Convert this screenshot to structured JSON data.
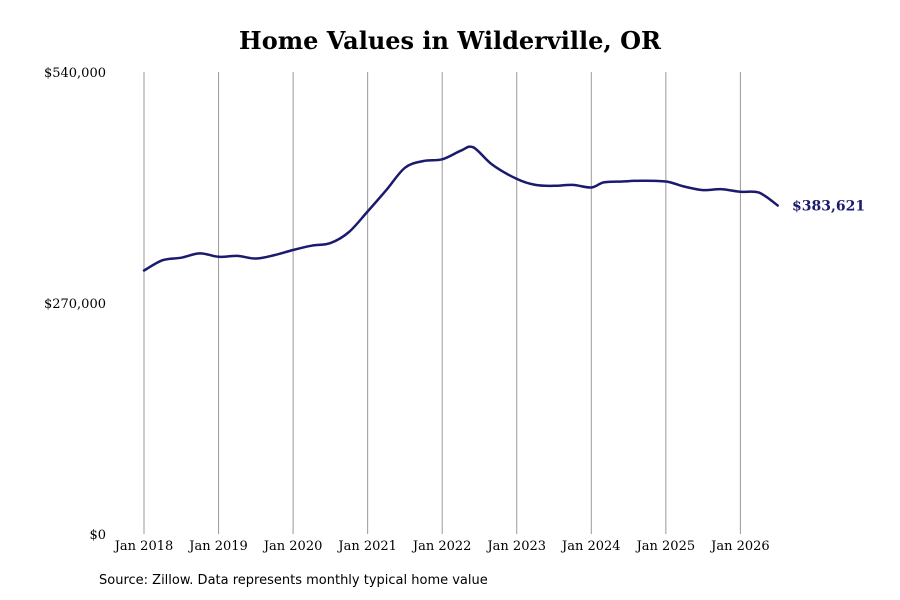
{
  "chart_data": {
    "type": "line",
    "title": "Home Values in Wilderville, OR",
    "xlabel": "",
    "ylabel": "",
    "ylim": [
      0,
      540000
    ],
    "y_ticks": [
      {
        "value": 0,
        "label": "$0"
      },
      {
        "value": 270000,
        "label": "$270,000"
      },
      {
        "value": 540000,
        "label": "$540,000"
      }
    ],
    "x_ticks": [
      {
        "value": "2018-01",
        "label": "Jan 2018"
      },
      {
        "value": "2019-01",
        "label": "Jan 2019"
      },
      {
        "value": "2020-01",
        "label": "Jan 2020"
      },
      {
        "value": "2021-01",
        "label": "Jan 2021"
      },
      {
        "value": "2022-01",
        "label": "Jan 2022"
      },
      {
        "value": "2023-01",
        "label": "Jan 2023"
      },
      {
        "value": "2024-01",
        "label": "Jan 2024"
      },
      {
        "value": "2025-01",
        "label": "Jan 2025"
      },
      {
        "value": "2026-01",
        "label": "Jan 2026"
      }
    ],
    "grid": "vertical",
    "line_color": "#1a1a6e",
    "end_label": "$383,621",
    "series": [
      {
        "name": "",
        "x": [
          "2018-01",
          "2018-04",
          "2018-07",
          "2018-10",
          "2019-01",
          "2019-04",
          "2019-07",
          "2019-10",
          "2020-01",
          "2020-04",
          "2020-07",
          "2020-10",
          "2021-01",
          "2021-04",
          "2021-07",
          "2021-10",
          "2022-01",
          "2022-04",
          "2022-06",
          "2022-09",
          "2023-01",
          "2023-04",
          "2023-07",
          "2023-10",
          "2024-01",
          "2024-03",
          "2024-06",
          "2024-09",
          "2025-01",
          "2025-04",
          "2025-07",
          "2025-10",
          "2026-01",
          "2026-04",
          "2026-07"
        ],
        "values": [
          308000,
          320000,
          323000,
          328000,
          324000,
          325000,
          322000,
          326000,
          332000,
          337000,
          340000,
          353000,
          377000,
          402000,
          428000,
          436000,
          438000,
          448000,
          452000,
          432000,
          415000,
          408000,
          407000,
          408000,
          405000,
          411000,
          412000,
          413000,
          412000,
          406000,
          402000,
          403000,
          400000,
          399000,
          384000
        ]
      }
    ]
  },
  "source_note": "Source: Zillow. Data represents monthly typical home value"
}
